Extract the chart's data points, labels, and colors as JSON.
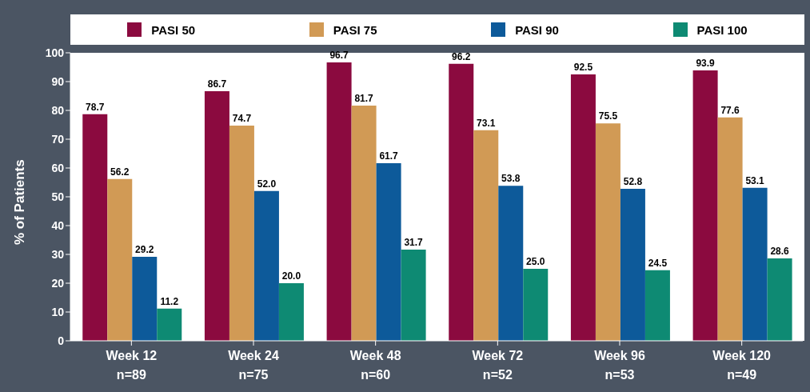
{
  "chart_data": {
    "type": "bar",
    "ylabel": "% of Patients",
    "categories": [
      "Week 12\nn=89",
      "Week 24\nn=75",
      "Week 48\nn=60",
      "Week 72\nn=52",
      "Week 96\nn=53",
      "Week 120\nn=49"
    ],
    "series": [
      {
        "name": "PASI 50",
        "color": "#8b0a3f",
        "values": [
          78.7,
          86.7,
          96.7,
          96.2,
          92.5,
          93.9
        ],
        "value_labels": [
          "78.7",
          "86.7",
          "96.7",
          "96.2",
          "92.5",
          "93.9"
        ]
      },
      {
        "name": "PASI 75",
        "color": "#d19a55",
        "values": [
          56.2,
          74.7,
          81.7,
          73.1,
          75.5,
          77.6
        ],
        "value_labels": [
          "56.2",
          "74.7",
          "81.7",
          "73.1",
          "75.5",
          "77.6"
        ]
      },
      {
        "name": "PASI 90",
        "color": "#0d5a9a",
        "values": [
          29.2,
          52.0,
          61.7,
          53.8,
          52.8,
          53.1
        ],
        "value_labels": [
          "29.2",
          "52.0",
          "61.7",
          "53.8",
          "52.8",
          "53.1"
        ]
      },
      {
        "name": "PASI 100",
        "color": "#0e8a73",
        "values": [
          11.2,
          20.0,
          31.7,
          25.0,
          24.5,
          28.6
        ],
        "value_labels": [
          "11.2",
          "20.0",
          "31.7",
          "25.0",
          "24.5",
          "28.6"
        ]
      }
    ],
    "ylim": [
      0,
      100
    ],
    "yticks": [
      0,
      10,
      20,
      30,
      40,
      50,
      60,
      70,
      80,
      90,
      100
    ],
    "grid": false,
    "legend": "top"
  }
}
